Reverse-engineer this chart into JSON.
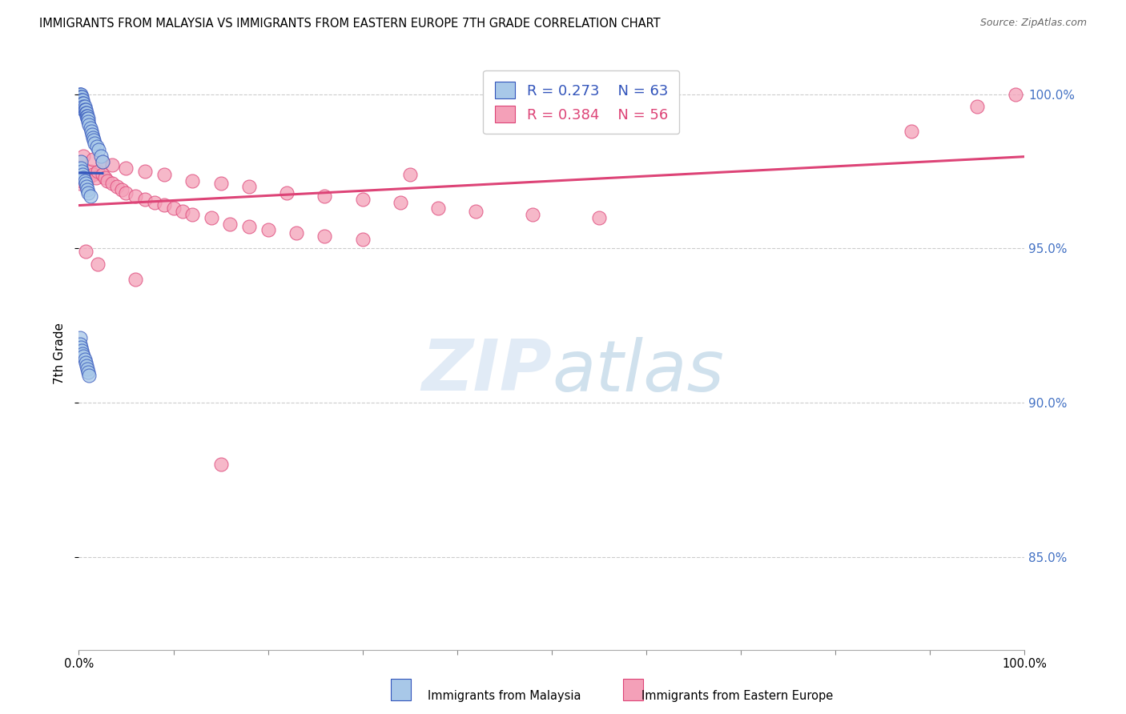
{
  "title": "IMMIGRANTS FROM MALAYSIA VS IMMIGRANTS FROM EASTERN EUROPE 7TH GRADE CORRELATION CHART",
  "source": "Source: ZipAtlas.com",
  "ylabel": "7th Grade",
  "ytick_labels": [
    "100.0%",
    "95.0%",
    "90.0%",
    "85.0%"
  ],
  "ytick_values": [
    1.0,
    0.95,
    0.9,
    0.85
  ],
  "xmin": 0.0,
  "xmax": 1.0,
  "ymin": 0.82,
  "ymax": 1.012,
  "legend_malaysia_r": "R = 0.273",
  "legend_malaysia_n": "N = 63",
  "legend_eastern_r": "R = 0.384",
  "legend_eastern_n": "N = 56",
  "color_malaysia": "#a8c8e8",
  "color_eastern": "#f4a0b8",
  "trendline_malaysia": "#3355bb",
  "trendline_eastern": "#dd4477",
  "malaysia_x": [
    0.001,
    0.001,
    0.001,
    0.001,
    0.001,
    0.002,
    0.002,
    0.002,
    0.002,
    0.003,
    0.003,
    0.003,
    0.003,
    0.004,
    0.004,
    0.004,
    0.005,
    0.005,
    0.005,
    0.006,
    0.006,
    0.007,
    0.007,
    0.008,
    0.008,
    0.009,
    0.009,
    0.01,
    0.01,
    0.011,
    0.012,
    0.013,
    0.014,
    0.015,
    0.016,
    0.017,
    0.019,
    0.021,
    0.023,
    0.025,
    0.002,
    0.002,
    0.003,
    0.004,
    0.005,
    0.006,
    0.007,
    0.008,
    0.009,
    0.01,
    0.012,
    0.001,
    0.001,
    0.002,
    0.003,
    0.004,
    0.005,
    0.006,
    0.007,
    0.008,
    0.009,
    0.01,
    0.011
  ],
  "malaysia_y": [
    1.0,
    1.0,
    0.999,
    0.998,
    0.997,
    1.0,
    0.999,
    0.998,
    0.997,
    0.999,
    0.998,
    0.997,
    0.996,
    0.998,
    0.997,
    0.996,
    0.997,
    0.996,
    0.995,
    0.996,
    0.995,
    0.995,
    0.994,
    0.994,
    0.993,
    0.993,
    0.992,
    0.992,
    0.991,
    0.99,
    0.989,
    0.988,
    0.987,
    0.986,
    0.985,
    0.984,
    0.983,
    0.982,
    0.98,
    0.978,
    0.978,
    0.976,
    0.975,
    0.974,
    0.973,
    0.972,
    0.971,
    0.97,
    0.969,
    0.968,
    0.967,
    0.921,
    0.919,
    0.918,
    0.917,
    0.916,
    0.915,
    0.914,
    0.913,
    0.912,
    0.911,
    0.91,
    0.909
  ],
  "eastern_x": [
    0.001,
    0.003,
    0.005,
    0.007,
    0.01,
    0.012,
    0.015,
    0.018,
    0.02,
    0.025,
    0.028,
    0.03,
    0.035,
    0.04,
    0.045,
    0.05,
    0.06,
    0.07,
    0.08,
    0.09,
    0.1,
    0.11,
    0.12,
    0.14,
    0.16,
    0.18,
    0.2,
    0.23,
    0.26,
    0.3,
    0.005,
    0.015,
    0.025,
    0.035,
    0.05,
    0.07,
    0.09,
    0.12,
    0.15,
    0.18,
    0.22,
    0.26,
    0.3,
    0.34,
    0.38,
    0.42,
    0.48,
    0.55,
    0.88,
    0.95,
    0.99,
    0.007,
    0.02,
    0.06,
    0.15,
    0.35
  ],
  "eastern_y": [
    0.971,
    0.972,
    0.974,
    0.972,
    0.973,
    0.975,
    0.974,
    0.973,
    0.975,
    0.974,
    0.973,
    0.972,
    0.971,
    0.97,
    0.969,
    0.968,
    0.967,
    0.966,
    0.965,
    0.964,
    0.963,
    0.962,
    0.961,
    0.96,
    0.958,
    0.957,
    0.956,
    0.955,
    0.954,
    0.953,
    0.98,
    0.979,
    0.978,
    0.977,
    0.976,
    0.975,
    0.974,
    0.972,
    0.971,
    0.97,
    0.968,
    0.967,
    0.966,
    0.965,
    0.963,
    0.962,
    0.961,
    0.96,
    0.988,
    0.996,
    1.0,
    0.949,
    0.945,
    0.94,
    0.88,
    0.974
  ]
}
